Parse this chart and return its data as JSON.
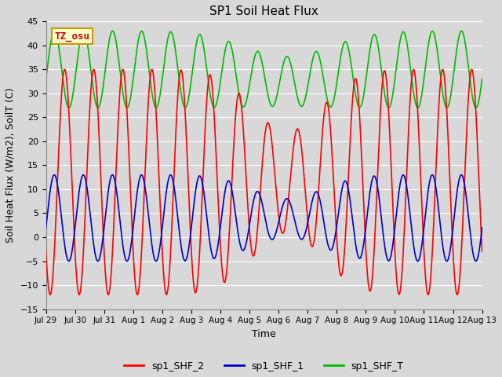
{
  "title": "SP1 Soil Heat Flux",
  "xlabel": "Time",
  "ylabel": "Soil Heat Flux (W/m2), SoilT (C)",
  "ylim": [
    -15,
    45
  ],
  "yticks": [
    -15,
    -10,
    -5,
    0,
    5,
    10,
    15,
    20,
    25,
    30,
    35,
    40,
    45
  ],
  "bg_color": "#d8d8d8",
  "plot_bg_color": "#d8d8d8",
  "grid_color": "#ffffff",
  "tz_label": "TZ_osu",
  "tz_bg": "#ffffcc",
  "tz_border": "#cc9900",
  "tz_text_color": "#cc0000",
  "legend_labels": [
    "sp1_SHF_2",
    "sp1_SHF_1",
    "sp1_SHF_T"
  ],
  "legend_colors": [
    "#ff0000",
    "#0000cc",
    "#00bb00"
  ],
  "font_size": 9,
  "title_font_size": 11
}
